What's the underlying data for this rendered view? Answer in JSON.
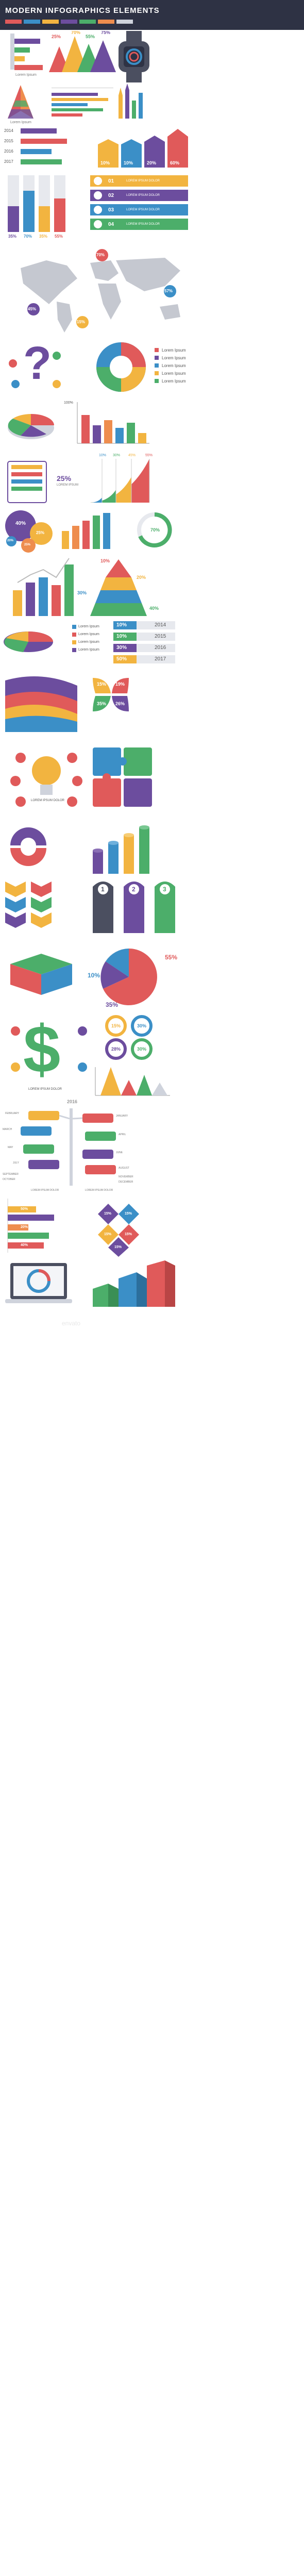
{
  "header": {
    "title": "MODERN INFOGRAPHICS ELEMENTS"
  },
  "palette": [
    "#e05a5a",
    "#3b8fc7",
    "#f2b440",
    "#6c4d9e",
    "#4cae6a",
    "#ee8d4e",
    "#cfd3dc"
  ],
  "bars_top": {
    "caption": "Lorem Ipsum"
  },
  "triangles": {
    "values": [
      "25%",
      "70%",
      "55%",
      "75%"
    ]
  },
  "pyramid": {
    "caption": "Lorem Ipsum"
  },
  "years_people": {
    "years": [
      "2014",
      "2015",
      "2016",
      "2017"
    ]
  },
  "chevron_bars": {
    "values": [
      "10%",
      "10%",
      "20%",
      "60%"
    ]
  },
  "cylinders": {
    "values": [
      "35%",
      "70%",
      "35%",
      "55%"
    ]
  },
  "arrow_list": {
    "numbers": [
      "01",
      "02",
      "03",
      "04"
    ],
    "label": "LOREM IPSUM DOLOR"
  },
  "map": {
    "values": [
      "70%",
      "45%",
      "57%",
      "15%"
    ]
  },
  "donut_legend": {
    "items": [
      "Lorem Ipsum",
      "Lorem Ipsum",
      "Lorem Ipsum",
      "Lorem Ipsum",
      "Lorem Ipsum"
    ]
  },
  "bar_chart2": {
    "label": "100%"
  },
  "curve": {
    "values": [
      "10%",
      "30%",
      "45%",
      "55%"
    ],
    "center": "25%",
    "sub": "LOREM IPSUM"
  },
  "circles": {
    "values": [
      "40%",
      "25%",
      "25%",
      "20%",
      "70%"
    ]
  },
  "pyramid2": {
    "values": [
      "10%",
      "20%",
      "30%",
      "40%"
    ]
  },
  "year_bars": {
    "rows": [
      {
        "value": "10%",
        "year": "2014"
      },
      {
        "value": "10%",
        "year": "2015"
      },
      {
        "value": "30%",
        "year": "2016"
      },
      {
        "value": "50%",
        "year": "2017"
      }
    ]
  },
  "pie3d_legend": {
    "items": [
      "Lorem Ipsum",
      "Lorem Ipsum",
      "Lorem Ipsum",
      "Lorem Ipsum"
    ]
  },
  "leaf_quad": {
    "values": [
      "15%",
      "19%",
      "35%",
      "26%"
    ]
  },
  "bulb": {
    "label": "LOREM IPSUM DOLOR"
  },
  "numbered": {
    "numbers": [
      "1",
      "2",
      "3"
    ]
  },
  "pie_big": {
    "values": [
      "55%",
      "10%",
      "35%"
    ]
  },
  "dollar": {
    "label": "LOREM IPSUM DOLOR"
  },
  "radials": {
    "values": [
      "15%",
      "30%",
      "28%",
      "30%"
    ]
  },
  "timeline": {
    "year": "2016",
    "months": [
      "FEBRUARY",
      "JANUARY",
      "MARCH",
      "APRIL",
      "MAY",
      "JUNE",
      "JULY",
      "AUGUST",
      "SEPTEMBER",
      "OCTOBER",
      "NOVEMBER",
      "DECEMBER"
    ],
    "footer_left": "LOREM IPSUM DOLOR",
    "footer_right": "LOREM IPSUM DOLOR"
  },
  "hbars": {
    "values": [
      "50%",
      "20%",
      "40%"
    ]
  },
  "diamonds": {
    "values": [
      "15%",
      "15%",
      "15%",
      "15%",
      "15%"
    ]
  },
  "watermark": "envato"
}
